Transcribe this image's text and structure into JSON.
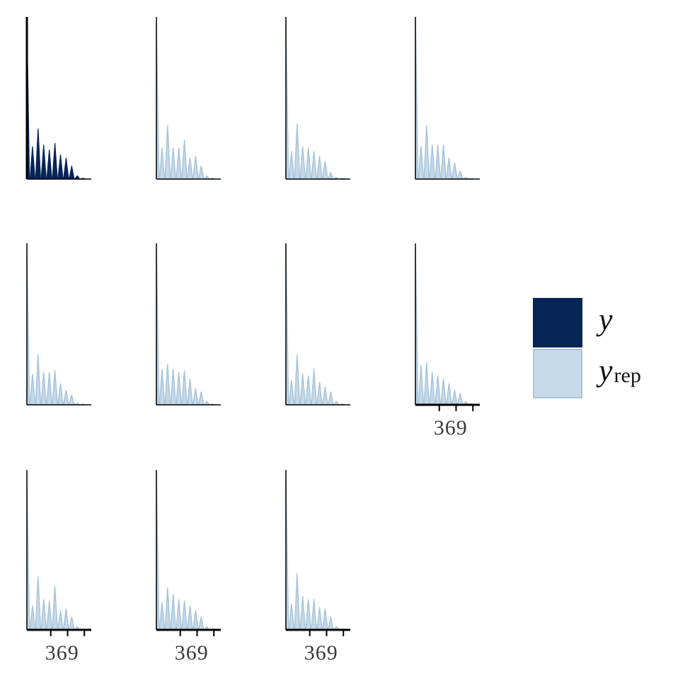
{
  "chart_data": {
    "type": "area",
    "description_kind": "posterior-predictive-check-histograms",
    "grid": false,
    "legend_placement": "right",
    "colors": {
      "y": "#062456",
      "y_rep_fill": "#c6d9e8",
      "y_rep_line": "#a8c4db",
      "axis": "#000000"
    },
    "x_ticks": [
      3,
      6,
      9
    ],
    "x_tick_labels": [
      "3",
      "6",
      "9"
    ],
    "x_range": [
      0,
      11.5
    ],
    "y_range": [
      0,
      1
    ],
    "legend": [
      {
        "key": "y",
        "label": "y",
        "subscript": ""
      },
      {
        "key": "y_rep",
        "label": "y",
        "subscript": "rep"
      }
    ],
    "panels": [
      {
        "series": "y",
        "values": [
          0.98,
          0.2,
          0.31,
          0.21,
          0.18,
          0.22,
          0.15,
          0.13,
          0.08,
          0.02,
          0.005
        ]
      },
      {
        "series": "y_rep",
        "values": [
          0.97,
          0.19,
          0.33,
          0.19,
          0.19,
          0.24,
          0.13,
          0.14,
          0.08,
          0.02,
          0.005
        ]
      },
      {
        "series": "y_rep",
        "values": [
          1.0,
          0.17,
          0.34,
          0.2,
          0.19,
          0.17,
          0.14,
          0.11,
          0.04,
          0.01,
          0.005
        ]
      },
      {
        "series": "y_rep",
        "values": [
          1.0,
          0.2,
          0.33,
          0.21,
          0.21,
          0.21,
          0.13,
          0.1,
          0.05,
          0.01,
          0.004
        ]
      },
      {
        "series": "y_rep",
        "values": [
          1.0,
          0.19,
          0.31,
          0.2,
          0.2,
          0.21,
          0.13,
          0.09,
          0.06,
          0.01,
          0.004
        ]
      },
      {
        "series": "y_rep",
        "values": [
          1.0,
          0.22,
          0.25,
          0.22,
          0.2,
          0.21,
          0.16,
          0.1,
          0.08,
          0.02,
          0.005
        ]
      },
      {
        "series": "y_rep",
        "values": [
          1.0,
          0.15,
          0.31,
          0.19,
          0.18,
          0.22,
          0.14,
          0.11,
          0.08,
          0.02,
          0.005
        ]
      },
      {
        "series": "y_rep",
        "values": [
          0.97,
          0.24,
          0.26,
          0.2,
          0.18,
          0.16,
          0.13,
          0.09,
          0.07,
          0.02,
          0.005
        ]
      },
      {
        "series": "y_rep",
        "values": [
          0.98,
          0.15,
          0.33,
          0.19,
          0.18,
          0.27,
          0.12,
          0.13,
          0.08,
          0.02,
          0.005
        ]
      },
      {
        "series": "y_rep",
        "values": [
          0.98,
          0.17,
          0.26,
          0.22,
          0.19,
          0.18,
          0.15,
          0.12,
          0.08,
          0.02,
          0.005
        ]
      },
      {
        "series": "y_rep",
        "values": [
          0.98,
          0.16,
          0.35,
          0.21,
          0.19,
          0.19,
          0.14,
          0.13,
          0.08,
          0.02,
          0.005
        ]
      }
    ]
  }
}
